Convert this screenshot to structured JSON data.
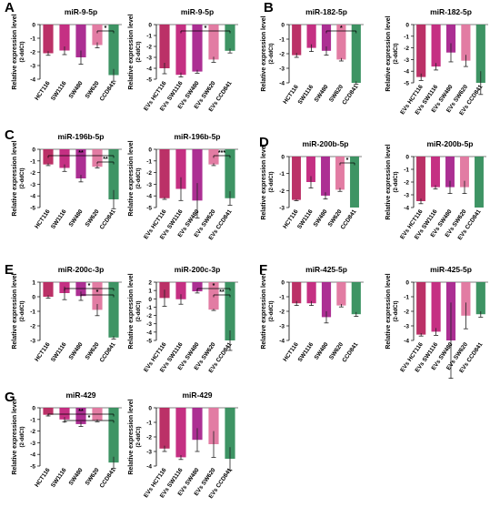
{
  "panel_letters": [
    "A",
    "B",
    "C",
    "D",
    "E",
    "F",
    "G"
  ],
  "colors": {
    "HCT116": "#b5205a",
    "SW1116": "#c01e78",
    "SW480": "#a51d8a",
    "SW620": "#e0719b",
    "CCD841": "#2e8b57",
    "sig": "#000000"
  },
  "chart_data": [
    {
      "id": "A-cell",
      "type": "bar",
      "title": "miR-9-5p",
      "ylabel": "Relative expression level",
      "ylabel2": "(2-ddCt)",
      "ylim": [
        -4,
        0
      ],
      "yticks": [
        "0",
        "-1",
        "-2",
        "-3",
        "-4"
      ],
      "categories": [
        "HCT116",
        "SW1116",
        "SW480",
        "SW620",
        "CCD841"
      ],
      "values": [
        -2.1,
        -1.9,
        -2.4,
        -1.5,
        -3.7
      ],
      "errors": [
        0.15,
        0.3,
        0.5,
        0.2,
        0.45
      ],
      "sig": [
        {
          "from": 3,
          "to": 4,
          "label": "*"
        }
      ]
    },
    {
      "id": "A-ev",
      "type": "bar",
      "title": "miR-9-5p",
      "ylabel": "Relative expression level",
      "ylabel2": "(2-ddCt)",
      "ylim": [
        -5,
        0
      ],
      "yticks": [
        "0",
        "-1",
        "-2",
        "-3",
        "-4",
        "-5"
      ],
      "categories": [
        "EVs HCT116",
        "EVs SW1116",
        "EVs SW480",
        "EVs SW620",
        "EVs CCD841"
      ],
      "values": [
        -4.0,
        -4.6,
        -4.3,
        -3.2,
        -2.4
      ],
      "errors": [
        0.5,
        0.2,
        0.15,
        0.25,
        0.2
      ],
      "sig": [
        {
          "from": 1,
          "to": 4,
          "label": "*"
        }
      ]
    },
    {
      "id": "B-cell",
      "type": "bar",
      "title": "miR-182-5p",
      "ylabel": "Relative expression level",
      "ylabel2": "(2-ddCt)",
      "ylim": [
        -4,
        0
      ],
      "yticks": [
        "0",
        "-1",
        "-2",
        "-3",
        "-4"
      ],
      "categories": [
        "HCT116",
        "SW1116",
        "SW480",
        "SW620",
        "CCD841"
      ],
      "values": [
        -2.1,
        -1.6,
        -1.8,
        -2.4,
        -4.0
      ],
      "errors": [
        0.15,
        0.25,
        0.3,
        0.1,
        0.1
      ],
      "sig": [
        {
          "from": 2,
          "to": 4,
          "label": "*"
        }
      ]
    },
    {
      "id": "B-ev",
      "type": "bar",
      "title": "miR-182-5p",
      "ylabel": "Relative expression level",
      "ylabel2": "(2-ddCt)",
      "ylim": [
        -5,
        0
      ],
      "yticks": [
        "0",
        "-1",
        "-2",
        "-3",
        "-4",
        "-5"
      ],
      "categories": [
        "EVs HCT116",
        "EVs SW1116",
        "EVs SW480",
        "EVs SW620",
        "EVs CCD841"
      ],
      "values": [
        -4.5,
        -3.6,
        -2.4,
        -3.1,
        -5.0
      ],
      "errors": [
        0.3,
        0.3,
        0.8,
        0.5,
        1.0
      ],
      "sig": []
    },
    {
      "id": "C-cell",
      "type": "bar",
      "title": "miR-196b-5p",
      "ylabel": "Relative expression level",
      "ylabel2": "(2-ddCt)",
      "ylim": [
        -5,
        0
      ],
      "yticks": [
        "0",
        "-1",
        "-2",
        "-3",
        "-4",
        "-5"
      ],
      "categories": [
        "HCT116",
        "SW1116",
        "SW480",
        "SW620",
        "CCD841"
      ],
      "values": [
        -1.3,
        -1.6,
        -2.5,
        -1.5,
        -4.3
      ],
      "errors": [
        0.1,
        0.3,
        0.3,
        0.1,
        0.8
      ],
      "sig": [
        {
          "from": 0,
          "to": 4,
          "label": "**"
        },
        {
          "from": 3,
          "to": 4,
          "label": "**"
        }
      ]
    },
    {
      "id": "C-ev",
      "type": "bar",
      "title": "miR-196b-5p",
      "ylabel": "Relative expression level",
      "ylabel2": "(2-ddCt)",
      "ylim": [
        -5,
        0
      ],
      "yticks": [
        "0",
        "-1",
        "-2",
        "-3",
        "-4",
        "-5"
      ],
      "categories": [
        "EVs HCT116",
        "EVs SW1116",
        "EVs SW480",
        "EVs SW620",
        "EVs CCD841"
      ],
      "values": [
        -4.2,
        -3.4,
        -4.4,
        -1.3,
        -4.2
      ],
      "errors": [
        0.1,
        1.0,
        1.5,
        0.1,
        0.6
      ],
      "sig": [
        {
          "from": 3,
          "to": 4,
          "label": "***"
        }
      ]
    },
    {
      "id": "D-cell",
      "type": "bar",
      "title": "miR-200b-5p",
      "ylabel": "Relative expression level",
      "ylabel2": "(2-ddCt)",
      "ylim": [
        -3,
        0
      ],
      "yticks": [
        "0",
        "-1",
        "-2",
        "-3"
      ],
      "categories": [
        "HCT116",
        "SW1116",
        "SW480",
        "SW620",
        "CCD841"
      ],
      "values": [
        -2.55,
        -1.5,
        -2.3,
        -1.95,
        -3.0
      ],
      "errors": [
        0.05,
        0.35,
        0.2,
        0.1,
        0.0
      ],
      "sig": [
        {
          "from": 3,
          "to": 4,
          "label": "*"
        }
      ]
    },
    {
      "id": "D-ev",
      "type": "bar",
      "title": "miR-200b-5p",
      "ylabel": "Relative expression level",
      "ylabel2": "(2-ddCt)",
      "ylim": [
        -4,
        0
      ],
      "yticks": [
        "0",
        "-1",
        "-2",
        "-3",
        "-4"
      ],
      "categories": [
        "EVs HCT116",
        "EVs SW1116",
        "EVs SW480",
        "EVs SW620",
        "EVs CCD841"
      ],
      "values": [
        -3.5,
        -2.4,
        -2.4,
        -2.4,
        -4.0
      ],
      "errors": [
        0.2,
        0.15,
        0.5,
        0.5,
        0.0
      ],
      "sig": []
    },
    {
      "id": "E-cell",
      "type": "bar",
      "title": "miR-200c-3p",
      "ylabel": "Relative expression level",
      "ylabel2": "(2-ddCt)",
      "ylim": [
        -3,
        1
      ],
      "yticks": [
        "1",
        "0",
        "-1",
        "-2",
        "-3"
      ],
      "categories": [
        "HCT116",
        "SW1116",
        "SW480",
        "SW620",
        "CCD841"
      ],
      "values": [
        0.0,
        0.25,
        0.05,
        -0.9,
        -2.8
      ],
      "errors": [
        0.1,
        0.45,
        0.3,
        0.4,
        0.1
      ],
      "sig": [
        {
          "from": 1,
          "to": 4,
          "label": "*"
        },
        {
          "from": 2,
          "to": 4,
          "label": "*"
        }
      ]
    },
    {
      "id": "E-ev",
      "type": "bar",
      "title": "miR-200c-3p",
      "ylabel": "Relative expression level",
      "ylabel2": "(2-ddCt)",
      "ylim": [
        -5,
        2
      ],
      "yticks": [
        "2",
        "1",
        "0",
        "-1",
        "-2",
        "-3",
        "-4",
        "-5"
      ],
      "categories": [
        "EVs HCT116",
        "EVs SW1116",
        "EVs SW480",
        "EVs SW620",
        "EVs CCD841"
      ],
      "values": [
        0.1,
        -0.05,
        0.9,
        -1.3,
        -5.0
      ],
      "errors": [
        1.0,
        0.6,
        0.2,
        0.1,
        1.2
      ],
      "sig": [
        {
          "from": 2,
          "to": 4,
          "label": "*"
        },
        {
          "from": 3,
          "to": 4,
          "label": "**"
        }
      ]
    },
    {
      "id": "F-cell",
      "type": "bar",
      "title": "miR-425-5p",
      "ylabel": "Relative expression level",
      "ylabel2": "(2-ddCt)",
      "ylim": [
        -4,
        0
      ],
      "yticks": [
        "0",
        "-1",
        "-2",
        "-3",
        "-4"
      ],
      "categories": [
        "HCT116",
        "SW1116",
        "SW480",
        "SW620",
        "CCD841"
      ],
      "values": [
        -1.45,
        -1.45,
        -2.4,
        -1.6,
        -2.2
      ],
      "errors": [
        0.15,
        0.15,
        0.4,
        0.1,
        0.15
      ],
      "sig": []
    },
    {
      "id": "F-ev",
      "type": "bar",
      "title": "miR-425-5p",
      "ylabel": "Relative expression level",
      "ylabel2": "(2-ddCt)",
      "ylim": [
        -4,
        0
      ],
      "yticks": [
        "0",
        "-1",
        "-2",
        "-3",
        "-4"
      ],
      "categories": [
        "EVs HCT116",
        "EVs SW1116",
        "EVs SW480",
        "EVs SW620",
        "EVs CCD841"
      ],
      "values": [
        -3.6,
        -3.4,
        -4.0,
        -2.3,
        -2.2
      ],
      "errors": [
        0.1,
        0.25,
        2.6,
        0.9,
        0.2
      ],
      "sig": []
    },
    {
      "id": "G-cell",
      "type": "bar",
      "title": "miR-429",
      "ylabel": "Relative expression level",
      "ylabel2": "(2-ddCt)",
      "ylim": [
        -5,
        0
      ],
      "yticks": [
        "0",
        "-1",
        "-2",
        "-3",
        "-4",
        "-5"
      ],
      "categories": [
        "HCT116",
        "SW1116",
        "SW480",
        "SW620",
        "CCD841"
      ],
      "values": [
        -0.6,
        -1.0,
        -1.4,
        -1.1,
        -4.7
      ],
      "errors": [
        0.1,
        0.2,
        0.2,
        0.1,
        0.5
      ],
      "sig": [
        {
          "from": 0,
          "to": 4,
          "label": "**"
        },
        {
          "from": 1,
          "to": 4,
          "label": "*"
        }
      ]
    },
    {
      "id": "G-ev",
      "type": "bar",
      "title": "miR-429",
      "ylabel": "Relative expression level",
      "ylabel2": "(2-ddCt)",
      "ylim": [
        -4,
        0
      ],
      "yticks": [
        "0",
        "-1",
        "-2",
        "-3",
        "-4"
      ],
      "categories": [
        "EVs HCT116",
        "EVs SW1116",
        "EVs SW480",
        "EVs SW620",
        "EVs CCD841"
      ],
      "values": [
        -2.8,
        -3.4,
        -2.2,
        -2.5,
        -3.5
      ],
      "errors": [
        0.2,
        0.15,
        0.8,
        0.9,
        0.8
      ],
      "sig": []
    }
  ]
}
